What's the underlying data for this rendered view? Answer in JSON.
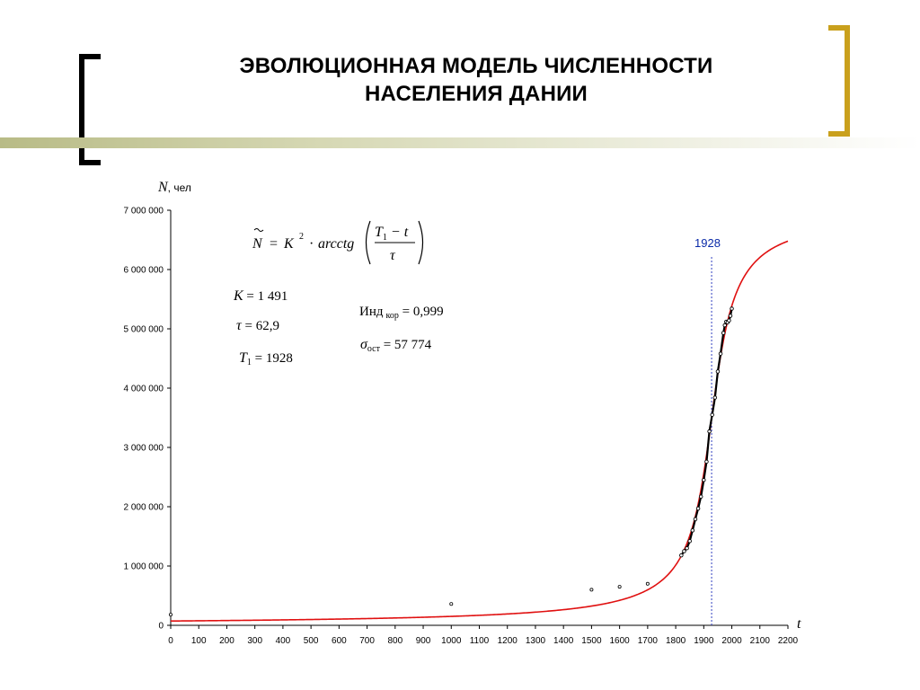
{
  "slide": {
    "title_line1": "ЭВОЛЮЦИОННАЯ МОДЕЛЬ ЧИСЛЕННОСТИ",
    "title_line2": "НАСЕЛЕНИЯ ДАНИИ",
    "accent_color": "#c9a01c",
    "bracket_color": "#000000",
    "bar_color": "#b8bb86"
  },
  "chart_data": {
    "type": "line",
    "ylabel_symbol": "N",
    "ylabel_unit": ", чел",
    "xlabel": "t",
    "xlim": [
      0,
      2200
    ],
    "ylim": [
      0,
      7000000
    ],
    "x_ticks": [
      0,
      100,
      200,
      300,
      400,
      500,
      600,
      700,
      800,
      900,
      1000,
      1100,
      1200,
      1300,
      1400,
      1500,
      1600,
      1700,
      1800,
      1900,
      2000,
      2100,
      2200
    ],
    "x_tick_labels": [
      "0",
      "100",
      "200",
      "300",
      "400",
      "500",
      "600",
      "700",
      "800",
      "900",
      "1000",
      "1100",
      "1200",
      "1300",
      "1400",
      "1500",
      "1600",
      "1700",
      "1800",
      "1900",
      "2000",
      "2100",
      "2200"
    ],
    "y_ticks": [
      0,
      1000000,
      2000000,
      3000000,
      4000000,
      5000000,
      6000000,
      7000000
    ],
    "y_tick_labels": [
      "0",
      "1 000 000",
      "2 000 000",
      "3 000 000",
      "4 000 000",
      "5 000 000",
      "6 000 000",
      "7 000 000"
    ],
    "model": {
      "K": 1491,
      "tau": 62.9,
      "T1": 1928,
      "color": "#e01010"
    },
    "marker_line": {
      "x": 1928,
      "label": "1928",
      "color": "#3040c0"
    },
    "scatter_points": [
      {
        "x": 0,
        "y": 180000
      },
      {
        "x": 1000,
        "y": 360000
      },
      {
        "x": 1500,
        "y": 600000
      },
      {
        "x": 1600,
        "y": 650000
      },
      {
        "x": 1700,
        "y": 700000
      }
    ],
    "observed_series": {
      "x_start": 1820,
      "x_end": 2000,
      "points": [
        [
          1820,
          1180000
        ],
        [
          1830,
          1250000
        ],
        [
          1840,
          1300000
        ],
        [
          1850,
          1420000
        ],
        [
          1860,
          1600000
        ],
        [
          1870,
          1790000
        ],
        [
          1880,
          1970000
        ],
        [
          1890,
          2170000
        ],
        [
          1900,
          2450000
        ],
        [
          1910,
          2760000
        ],
        [
          1920,
          3270000
        ],
        [
          1930,
          3550000
        ],
        [
          1940,
          3840000
        ],
        [
          1950,
          4280000
        ],
        [
          1960,
          4580000
        ],
        [
          1970,
          4930000
        ],
        [
          1975,
          5060000
        ],
        [
          1980,
          5120000
        ],
        [
          1985,
          5110000
        ],
        [
          1990,
          5140000
        ],
        [
          1995,
          5220000
        ],
        [
          2000,
          5340000
        ]
      ]
    },
    "equation": {
      "lhs": "N",
      "equals": "=",
      "k_symbol": "K",
      "exp": "2",
      "dot": "·",
      "func": "arcctg",
      "numerator_T": "T",
      "numerator_sub": "1",
      "numerator_rest": " − t",
      "denominator": "τ"
    },
    "params": {
      "k_label": "K",
      "k_value": " = 1 491",
      "tau_label": "τ",
      "tau_value": " = 62,9",
      "t1_label": "T",
      "t1_sub": "1",
      "t1_value": " = 1928",
      "ind_label": "Инд",
      "ind_sub": "кор",
      "ind_value": " = 0,999",
      "sigma_label": "σ",
      "sigma_sub": "ост",
      "sigma_value": " = 57 774"
    }
  }
}
